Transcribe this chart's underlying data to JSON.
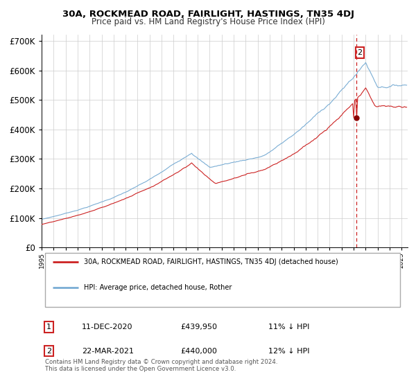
{
  "title1": "30A, ROCKMEAD ROAD, FAIRLIGHT, HASTINGS, TN35 4DJ",
  "title2": "Price paid vs. HM Land Registry's House Price Index (HPI)",
  "legend_line1": "30A, ROCKMEAD ROAD, FAIRLIGHT, HASTINGS, TN35 4DJ (detached house)",
  "legend_line2": "HPI: Average price, detached house, Rother",
  "annotation1_date": "11-DEC-2020",
  "annotation1_price": "£439,950",
  "annotation1_hpi": "11% ↓ HPI",
  "annotation2_date": "22-MAR-2021",
  "annotation2_price": "£440,000",
  "annotation2_hpi": "12% ↓ HPI",
  "footnote": "Contains HM Land Registry data © Crown copyright and database right 2024.\nThis data is licensed under the Open Government Licence v3.0.",
  "hpi_color": "#7aadd4",
  "property_color": "#cc2222",
  "dashed_line_color": "#cc2222",
  "marker_color": "#8b0000",
  "background_color": "#ffffff",
  "grid_color": "#cccccc",
  "annotation_box_color": "#cc2222",
  "ylim": [
    0,
    720000
  ],
  "yticks": [
    0,
    100000,
    200000,
    300000,
    400000,
    500000,
    600000,
    700000
  ],
  "sale1_year": 2020.96,
  "sale2_year": 2021.21,
  "sale1_price": 439950,
  "sale2_price": 440000
}
